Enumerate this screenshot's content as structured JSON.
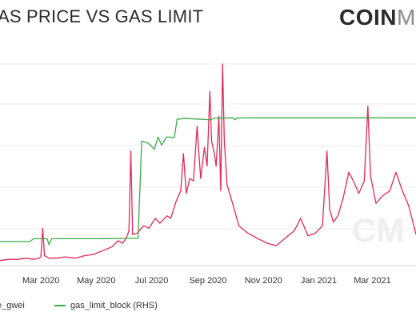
{
  "header": {
    "title": "AS PRICE VS GAS LIMIT",
    "brand_bold": "COIN",
    "brand_light": "ME"
  },
  "watermark": "CM",
  "legend": {
    "items": [
      {
        "label": "e_gwei",
        "color": "#e3285a"
      },
      {
        "label": "gas_limit_block (RHS)",
        "color": "#3cab4a"
      }
    ]
  },
  "chart_data": {
    "type": "line",
    "title": "AS PRICE VS GAS LIMIT",
    "xlabel": "",
    "ylabel": "",
    "grid": true,
    "legend_position": "bottom",
    "x_ticks": [
      "Mar 2020",
      "May 2020",
      "Jul 2020",
      "Sep 2020",
      "Nov 2020",
      "Jan 2021",
      "Mar 2021"
    ],
    "xlim": [
      "2020-01-16",
      "2021-04-18"
    ],
    "series": [
      {
        "name": "e_gwei",
        "color": "#e3285a",
        "axis": "left",
        "points": [
          [
            "2020-01-16",
            4
          ],
          [
            "2020-01-25",
            5
          ],
          [
            "2020-02-05",
            5
          ],
          [
            "2020-02-14",
            6
          ],
          [
            "2020-02-22",
            5
          ],
          [
            "2020-02-28",
            6
          ],
          [
            "2020-03-01",
            7
          ],
          [
            "2020-03-03",
            30
          ],
          [
            "2020-03-05",
            8
          ],
          [
            "2020-03-10",
            6
          ],
          [
            "2020-03-18",
            6
          ],
          [
            "2020-03-28",
            7
          ],
          [
            "2020-04-08",
            6
          ],
          [
            "2020-04-18",
            8
          ],
          [
            "2020-04-28",
            9
          ],
          [
            "2020-05-08",
            12
          ],
          [
            "2020-05-18",
            15
          ],
          [
            "2020-05-25",
            20
          ],
          [
            "2020-05-30",
            18
          ],
          [
            "2020-06-03",
            22
          ],
          [
            "2020-06-06",
            28
          ],
          [
            "2020-06-08",
            92
          ],
          [
            "2020-06-10",
            25
          ],
          [
            "2020-06-15",
            26
          ],
          [
            "2020-06-22",
            32
          ],
          [
            "2020-06-28",
            30
          ],
          [
            "2020-07-05",
            38
          ],
          [
            "2020-07-10",
            34
          ],
          [
            "2020-07-18",
            40
          ],
          [
            "2020-07-22",
            38
          ],
          [
            "2020-07-28",
            52
          ],
          [
            "2020-08-02",
            60
          ],
          [
            "2020-08-05",
            90
          ],
          [
            "2020-08-08",
            58
          ],
          [
            "2020-08-12",
            70
          ],
          [
            "2020-08-16",
            68
          ],
          [
            "2020-08-20",
            112
          ],
          [
            "2020-08-22",
            90
          ],
          [
            "2020-08-24",
            70
          ],
          [
            "2020-08-28",
            95
          ],
          [
            "2020-08-31",
            80
          ],
          [
            "2020-09-03",
            140
          ],
          [
            "2020-09-05",
            100
          ],
          [
            "2020-09-08",
            90
          ],
          [
            "2020-09-10",
            80
          ],
          [
            "2020-09-13",
            120
          ],
          [
            "2020-09-15",
            60
          ],
          [
            "2020-09-17",
            162
          ],
          [
            "2020-09-19",
            100
          ],
          [
            "2020-09-22",
            65
          ],
          [
            "2020-09-28",
            50
          ],
          [
            "2020-10-05",
            32
          ],
          [
            "2020-10-15",
            26
          ],
          [
            "2020-10-25",
            22
          ],
          [
            "2020-11-05",
            18
          ],
          [
            "2020-11-15",
            16
          ],
          [
            "2020-11-25",
            22
          ],
          [
            "2020-12-05",
            28
          ],
          [
            "2020-12-12",
            38
          ],
          [
            "2020-12-20",
            24
          ],
          [
            "2020-12-28",
            26
          ],
          [
            "2021-01-05",
            32
          ],
          [
            "2021-01-10",
            92
          ],
          [
            "2021-01-13",
            45
          ],
          [
            "2021-01-17",
            35
          ],
          [
            "2021-01-22",
            40
          ],
          [
            "2021-01-28",
            55
          ],
          [
            "2021-02-03",
            75
          ],
          [
            "2021-02-08",
            68
          ],
          [
            "2021-02-14",
            58
          ],
          [
            "2021-02-20",
            68
          ],
          [
            "2021-02-24",
            128
          ],
          [
            "2021-02-27",
            72
          ],
          [
            "2021-03-05",
            50
          ],
          [
            "2021-03-12",
            56
          ],
          [
            "2021-03-20",
            60
          ],
          [
            "2021-03-27",
            75
          ],
          [
            "2021-04-03",
            60
          ],
          [
            "2021-04-10",
            48
          ],
          [
            "2021-04-18",
            25
          ]
        ]
      },
      {
        "name": "gas_limit_block (RHS)",
        "color": "#3cab4a",
        "axis": "right",
        "points": [
          [
            "2020-01-16",
            9.9
          ],
          [
            "2020-02-18",
            9.9
          ],
          [
            "2020-02-22",
            9.97
          ],
          [
            "2020-03-08",
            9.97
          ],
          [
            "2020-03-10",
            9.82
          ],
          [
            "2020-03-13",
            9.97
          ],
          [
            "2020-04-30",
            9.97
          ],
          [
            "2020-06-09",
            9.98
          ],
          [
            "2020-06-16",
            9.98
          ],
          [
            "2020-06-20",
            12.4
          ],
          [
            "2020-06-27",
            12.35
          ],
          [
            "2020-07-04",
            12.2
          ],
          [
            "2020-07-08",
            12.5
          ],
          [
            "2020-07-12",
            12.3
          ],
          [
            "2020-07-17",
            12.5
          ],
          [
            "2020-07-22",
            12.5
          ],
          [
            "2020-07-24",
            12.48
          ],
          [
            "2020-07-26",
            12.5
          ],
          [
            "2020-07-29",
            12.95
          ],
          [
            "2020-08-02",
            12.95
          ],
          [
            "2020-08-04",
            12.97
          ],
          [
            "2020-09-04",
            12.93
          ],
          [
            "2020-09-08",
            12.97
          ],
          [
            "2020-09-28",
            12.98
          ],
          [
            "2020-10-01",
            12.93
          ],
          [
            "2020-10-03",
            12.98
          ],
          [
            "2020-10-06",
            12.97
          ],
          [
            "2020-10-08",
            12.98
          ],
          [
            "2020-11-12",
            12.98
          ],
          [
            "2020-11-14",
            12.98
          ],
          [
            "2020-12-18",
            12.98
          ],
          [
            "2021-04-18",
            12.98
          ]
        ]
      }
    ],
    "notes_visible": "Left and right y-axis tick labels are cropped out of view."
  }
}
